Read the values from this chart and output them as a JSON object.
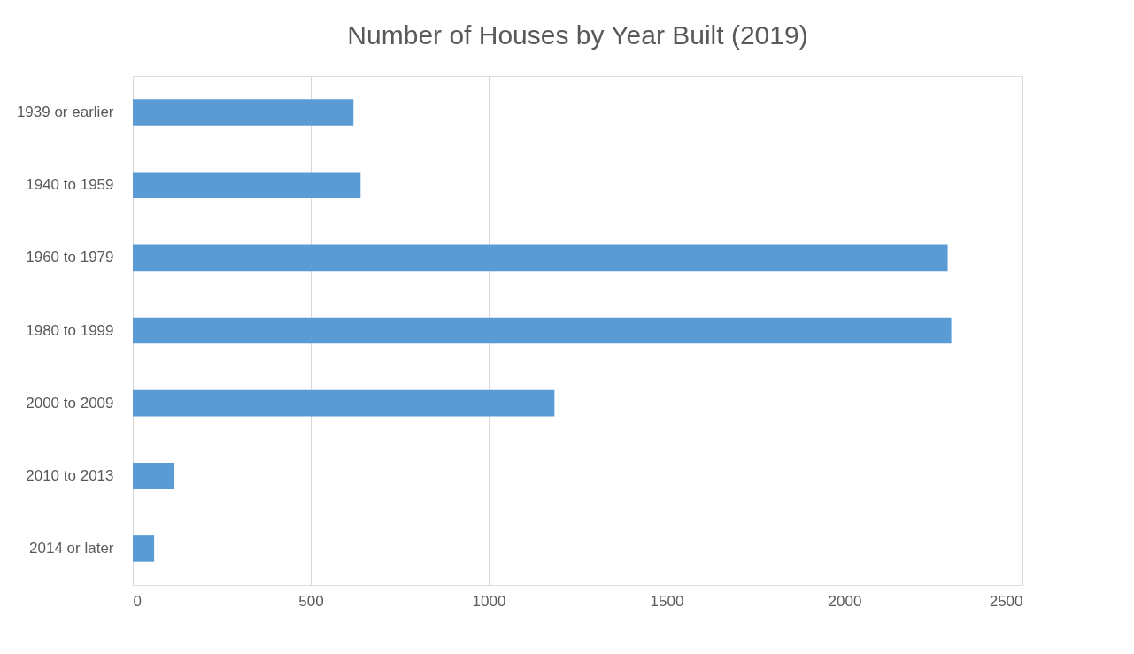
{
  "chart_data": {
    "type": "bar",
    "orientation": "horizontal",
    "title": "Number of Houses by Year Built (2019)",
    "categories": [
      "1939 or earlier",
      "1940 to 1959",
      "1960 to 1979",
      "1980 to 1999",
      "2000 to 2009",
      "2010 to 2013",
      "2014 or later"
    ],
    "values": [
      620,
      640,
      2290,
      2300,
      1185,
      115,
      60
    ],
    "color": "#5b9bd5",
    "xlim": [
      0,
      2500
    ],
    "xticks": [
      0,
      500,
      1000,
      1500,
      2000,
      2500
    ],
    "grid": "x"
  }
}
